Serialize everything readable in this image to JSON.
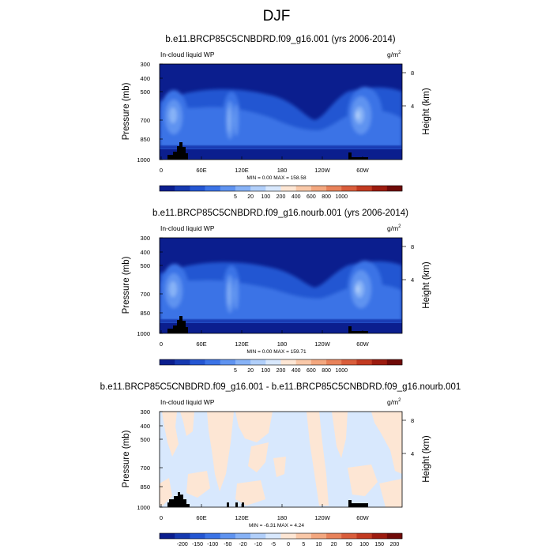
{
  "figure": {
    "season_title": "DJF",
    "variable_label": "In-cloud liquid WP",
    "units_label": "g/m",
    "units_superscript": "2",
    "y_axis_label": "Pressure (mb)",
    "y2_axis_label": "Height (km)",
    "pressure_ticks": [
      "300",
      "400",
      "500",
      "700",
      "850",
      "1000"
    ],
    "height_ticks": [
      "8",
      "4"
    ],
    "lon_ticks": [
      "0",
      "60E",
      "120E",
      "180",
      "120W",
      "60W"
    ]
  },
  "chart_data": [
    {
      "type": "heatmap",
      "title": "b.e11.BRCP85C5CNBDRD.f09_g16.001 (yrs 2006-2014)",
      "stat_text": "MIN =   0.00  MAX = 158.58",
      "x_axis": "longitude",
      "y_axis": "pressure (mb)",
      "colorbar_labels": [
        "5",
        "20",
        "100",
        "200",
        "400",
        "600",
        "800",
        "1000"
      ],
      "colorbar_colors": [
        "#0b1e8e",
        "#1639b0",
        "#2456d2",
        "#3b73e6",
        "#5f93f0",
        "#87b2f6",
        "#b1cffa",
        "#d8e8fd",
        "#fde6d4",
        "#f9c8a8",
        "#f3a77f",
        "#e8825a",
        "#d95d3b",
        "#c23a21",
        "#9c1b0f",
        "#6f0a08"
      ],
      "min": 0.0,
      "max": 158.58
    },
    {
      "type": "heatmap",
      "title": "b.e11.BRCP85C5CNBDRD.f09_g16.nourb.001 (yrs 2006-2014)",
      "stat_text": "MIN =   0.00  MAX = 159.71",
      "x_axis": "longitude",
      "y_axis": "pressure (mb)",
      "colorbar_labels": [
        "5",
        "20",
        "100",
        "200",
        "400",
        "600",
        "800",
        "1000"
      ],
      "colorbar_colors": [
        "#0b1e8e",
        "#1639b0",
        "#2456d2",
        "#3b73e6",
        "#5f93f0",
        "#87b2f6",
        "#b1cffa",
        "#d8e8fd",
        "#fde6d4",
        "#f9c8a8",
        "#f3a77f",
        "#e8825a",
        "#d95d3b",
        "#c23a21",
        "#9c1b0f",
        "#6f0a08"
      ],
      "min": 0.0,
      "max": 159.71
    },
    {
      "type": "heatmap",
      "title": "b.e11.BRCP85C5CNBDRD.f09_g16.001 - b.e11.BRCP85C5CNBDRD.f09_g16.nourb.001",
      "stat_text": "MIN =  -6.31  MAX =   4.24",
      "x_axis": "longitude",
      "y_axis": "pressure (mb)",
      "colorbar_labels": [
        "-200",
        "-150",
        "-100",
        "-50",
        "-20",
        "-10",
        "-5",
        "0",
        "5",
        "10",
        "20",
        "50",
        "100",
        "150",
        "200"
      ],
      "colorbar_colors": [
        "#0b1e8e",
        "#1639b0",
        "#2456d2",
        "#3b73e6",
        "#5f93f0",
        "#87b2f6",
        "#b1cffa",
        "#d8e8fd",
        "#fde6d4",
        "#f9c8a8",
        "#f3a77f",
        "#e8825a",
        "#d95d3b",
        "#c23a21",
        "#9c1b0f",
        "#6f0a08"
      ],
      "min": -6.31,
      "max": 4.24
    }
  ]
}
